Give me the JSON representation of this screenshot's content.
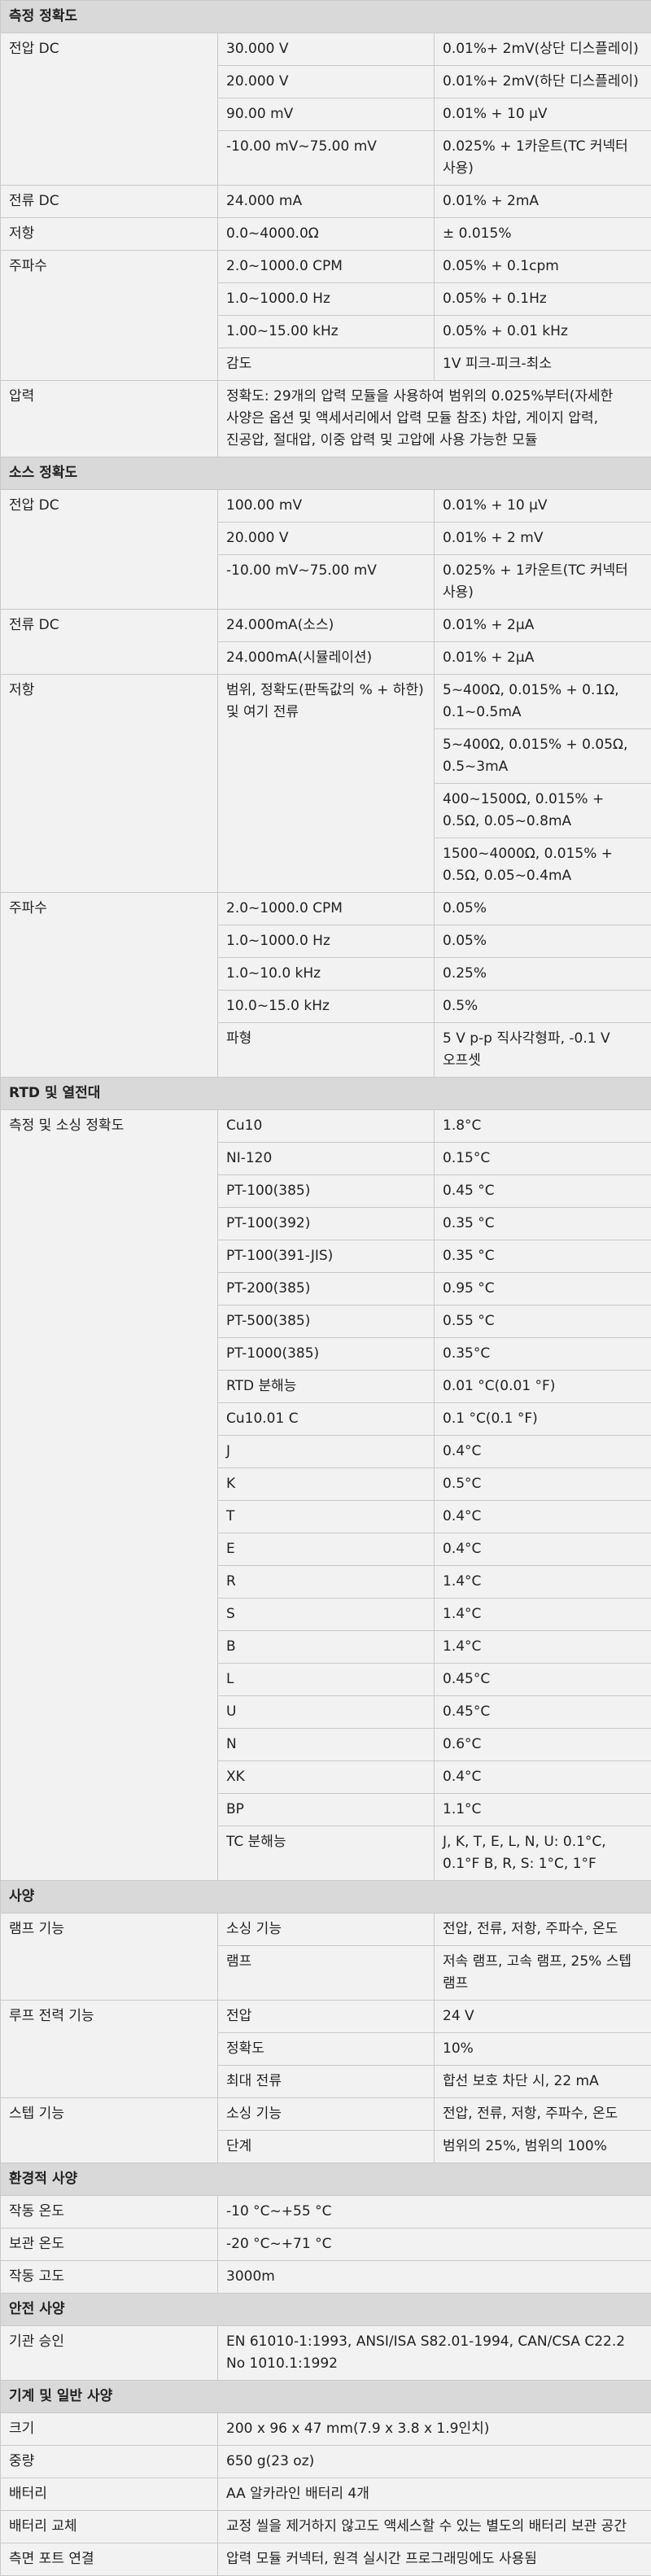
{
  "sections": [
    {
      "title": "측정 정확도",
      "groups": [
        {
          "label": "전압 DC",
          "rows": [
            [
              "30.000 V",
              "0.01%+ 2mV(상단 디스플레이)"
            ],
            [
              "20.000 V",
              "0.01%+ 2mV(하단 디스플레이)"
            ],
            [
              "90.00 mV",
              "0.01% + 10 μV"
            ],
            [
              "-10.00 mV~75.00 mV",
              "0.025% + 1카운트(TC 커넥터 사용)"
            ]
          ]
        },
        {
          "label": "전류 DC",
          "rows": [
            [
              "24.000 mA",
              "0.01% + 2mA"
            ]
          ]
        },
        {
          "label": "저항",
          "rows": [
            [
              "0.0~4000.0Ω",
              "± 0.015%"
            ]
          ]
        },
        {
          "label": "주파수",
          "rows": [
            [
              "2.0~1000.0 CPM",
              "0.05% + 0.1cpm"
            ],
            [
              "1.0~1000.0 Hz",
              "0.05% + 0.1Hz"
            ],
            [
              "1.00~15.00 kHz",
              "0.05% + 0.01 kHz"
            ],
            [
              "감도",
              "1V 피크-피크-최소"
            ]
          ]
        },
        {
          "label": "압력",
          "full": "정확도: 29개의 압력 모듈을 사용하여 범위의 0.025%부터(자세한 사양은 옵션 및 액세서리에서 압력 모듈 참조) 차압, 게이지 압력, 진공압, 절대압, 이중 압력 및 고압에 사용 가능한 모듈"
        }
      ]
    },
    {
      "title": "소스 정확도",
      "groups": [
        {
          "label": "전압 DC",
          "rows": [
            [
              "100.00 mV",
              "0.01% + 10 μV"
            ],
            [
              "20.000 V",
              "0.01% + 2 mV"
            ],
            [
              "-10.00 mV~75.00 mV",
              "0.025% + 1카운트(TC 커넥터 사용)"
            ]
          ]
        },
        {
          "label": "전류 DC",
          "rows": [
            [
              "24.000mA(소스)",
              "0.01% + 2μA"
            ],
            [
              "24.000mA(시뮬레이션)",
              "0.01% + 2μA"
            ]
          ]
        },
        {
          "label": "저항",
          "span_text": "범위, 정확도(판독값의 % + 하한) 및 여기 전류",
          "values": [
            "5~400Ω, 0.015% + 0.1Ω, 0.1~0.5mA",
            "5~400Ω, 0.015% + 0.05Ω, 0.5~3mA",
            "400~1500Ω, 0.015% + 0.5Ω, 0.05~0.8mA",
            "1500~4000Ω, 0.015% + 0.5Ω, 0.05~0.4mA"
          ]
        },
        {
          "label": "주파수",
          "rows": [
            [
              "2.0~1000.0 CPM",
              "0.05%"
            ],
            [
              "1.0~1000.0 Hz",
              "0.05%"
            ],
            [
              "1.0~10.0 kHz",
              "0.25%"
            ],
            [
              "10.0~15.0 kHz",
              "0.5%"
            ],
            [
              "파형",
              "5 V p-p 직사각형파, -0.1 V 오프셋"
            ]
          ]
        }
      ]
    },
    {
      "title": "RTD 및 열전대",
      "groups": [
        {
          "label": "측정 및 소싱 정확도",
          "rows": [
            [
              "Cu10",
              "1.8°C"
            ],
            [
              "NI-120",
              "0.15°C"
            ],
            [
              "PT-100(385)",
              "0.45 °C"
            ],
            [
              "PT-100(392)",
              "0.35 °C"
            ],
            [
              "PT-100(391-JIS)",
              "0.35 °C"
            ],
            [
              "PT-200(385)",
              "0.95 °C"
            ],
            [
              "PT-500(385)",
              "0.55 °C"
            ],
            [
              "PT-1000(385)",
              "0.35°C"
            ],
            [
              "RTD 분해능",
              "0.01 °C(0.01 °F)"
            ],
            [
              "Cu10.01 C",
              "0.1 °C(0.1 °F)"
            ],
            [
              "J",
              "0.4°C"
            ],
            [
              "K",
              "0.5°C"
            ],
            [
              "T",
              "0.4°C"
            ],
            [
              "E",
              "0.4°C"
            ],
            [
              "R",
              "1.4°C"
            ],
            [
              "S",
              "1.4°C"
            ],
            [
              "B",
              "1.4°C"
            ],
            [
              "L",
              "0.45°C"
            ],
            [
              "U",
              "0.45°C"
            ],
            [
              "N",
              "0.6°C"
            ],
            [
              "XK",
              "0.4°C"
            ],
            [
              "BP",
              "1.1°C"
            ],
            [
              "TC 분해능",
              "J, K, T, E, L, N, U: 0.1°C, 0.1°F B, R, S: 1°C, 1°F"
            ]
          ]
        }
      ]
    },
    {
      "title": "사양",
      "groups": [
        {
          "label": "램프 기능",
          "rows": [
            [
              "소싱 기능",
              "전압, 전류, 저항, 주파수, 온도"
            ],
            [
              "램프",
              "저속 램프, 고속 램프, 25% 스텝 램프"
            ]
          ]
        },
        {
          "label": "루프 전력 기능",
          "rows": [
            [
              "전압",
              "24 V"
            ],
            [
              "정확도",
              "10%"
            ],
            [
              "최대 전류",
              "합선 보호 차단 시, 22 mA"
            ]
          ]
        },
        {
          "label": "스텝 기능",
          "rows": [
            [
              "소싱 기능",
              "전압, 전류, 저항, 주파수, 온도"
            ],
            [
              "단계",
              "범위의 25%, 범위의 100%"
            ]
          ]
        }
      ]
    },
    {
      "title": "환경적 사양",
      "groups": [
        {
          "label": "작동 온도",
          "wide": "-10 °C~+55 °C"
        },
        {
          "label": "보관 온도",
          "wide": "-20 °C~+71 °C"
        },
        {
          "label": "작동 고도",
          "wide": "3000m"
        }
      ]
    },
    {
      "title": "안전 사양",
      "groups": [
        {
          "label": "기관 승인",
          "wide": "EN 61010-1:1993, ANSI/ISA S82.01-1994, CAN/CSA C22.2 No 1010.1:1992"
        }
      ]
    },
    {
      "title": "기계 및 일반 사양",
      "groups": [
        {
          "label": "크기",
          "wide": "200 x 96 x 47 mm(7.9 x 3.8 x 1.9인치)"
        },
        {
          "label": "중량",
          "wide": "650 g(23 oz)"
        },
        {
          "label": "배터리",
          "wide": "AA 알카라인 배터리 4개"
        },
        {
          "label": "배터리 교체",
          "wide": "교정 씰을 제거하지 않고도 액세스할 수 있는 별도의 배터리 보관 공간"
        },
        {
          "label": "측면 포트 연결",
          "wide": "압력 모듈 커넥터, 원격 실시간 프로그래밍에도 사용됨"
        }
      ]
    }
  ]
}
